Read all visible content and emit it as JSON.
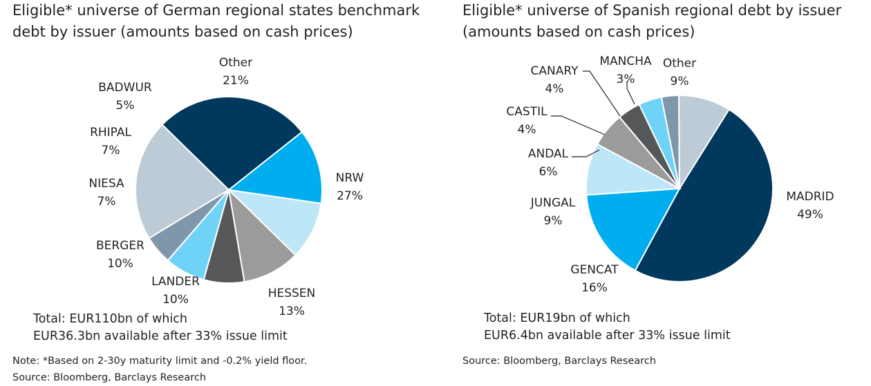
{
  "chart_data": [
    {
      "type": "pie",
      "title": "Eligible* universe of German regional states benchmark debt by issuer (amounts based on cash prices)",
      "categories": [
        "NRW",
        "HESSEN",
        "LANDER",
        "BERGER",
        "NIESA",
        "RHIPAL",
        "BADWUR",
        "Other"
      ],
      "values": [
        27,
        13,
        10,
        10,
        7,
        7,
        5,
        21
      ],
      "value_labels": [
        "27%",
        "13%",
        "10%",
        "10%",
        "7%",
        "7%",
        "5%",
        "21%"
      ],
      "colors": [
        "#00395d",
        "#00aeef",
        "#bde6f7",
        "#9b9b9b",
        "#555759",
        "#6fd3f7",
        "#7f97ab",
        "#bccbd6"
      ],
      "total_text": [
        "Total: EUR110bn of which",
        "EUR36.3bn available after 33% issue limit"
      ],
      "note_lines": [
        "Note: *Based on 2-30y maturity limit and -0.2% yield floor.",
        "Source: Bloomberg, Barclays Research"
      ]
    },
    {
      "type": "pie",
      "title": "Eligible* universe of Spanish regional debt by issuer (amounts based on cash prices)",
      "categories": [
        "MADRID",
        "GENCAT",
        "JUNGAL",
        "ANDAL",
        "CASTIL",
        "CANARY",
        "MANCHA",
        "Other"
      ],
      "values": [
        49,
        16,
        9,
        6,
        4,
        4,
        3,
        9
      ],
      "value_labels": [
        "49%",
        "16%",
        "9%",
        "6%",
        "4%",
        "4%",
        "3%",
        "9%"
      ],
      "colors": [
        "#00395d",
        "#00aeef",
        "#bde6f7",
        "#9b9b9b",
        "#555759",
        "#6fd3f7",
        "#7f97ab",
        "#bccbd6"
      ],
      "total_text": [
        "Total: EUR19bn of which",
        "EUR6.4bn available after 33% issue limit"
      ],
      "note_lines": [
        "Source: Bloomberg, Barclays Research"
      ]
    }
  ]
}
